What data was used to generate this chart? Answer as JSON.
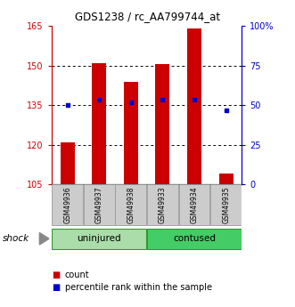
{
  "title": "GDS1238 / rc_AA799744_at",
  "samples": [
    "GSM49936",
    "GSM49937",
    "GSM49938",
    "GSM49933",
    "GSM49934",
    "GSM49935"
  ],
  "bar_values": [
    121,
    151,
    144,
    150.5,
    164,
    109
  ],
  "blue_dot_values": [
    135,
    137,
    136,
    137,
    137,
    133
  ],
  "y_min": 105,
  "y_max": 165,
  "y_ticks_left": [
    105,
    120,
    135,
    150,
    165
  ],
  "y_ticks_right_pos": [
    105,
    120,
    135,
    150,
    165
  ],
  "y_ticks_right_labels": [
    "0",
    "25",
    "50",
    "75",
    "100%"
  ],
  "bar_color": "#CC0000",
  "dot_color": "#0000CC",
  "bar_width": 0.45,
  "plot_bg": "#ffffff",
  "legend_count": "count",
  "legend_percentile": "percentile rank within the sample",
  "group_uninj_color": "#AADDAA",
  "group_cont_color": "#44CC66",
  "group_border_color": "#339933",
  "sample_box_color": "#CCCCCC",
  "sample_box_border": "#999999"
}
